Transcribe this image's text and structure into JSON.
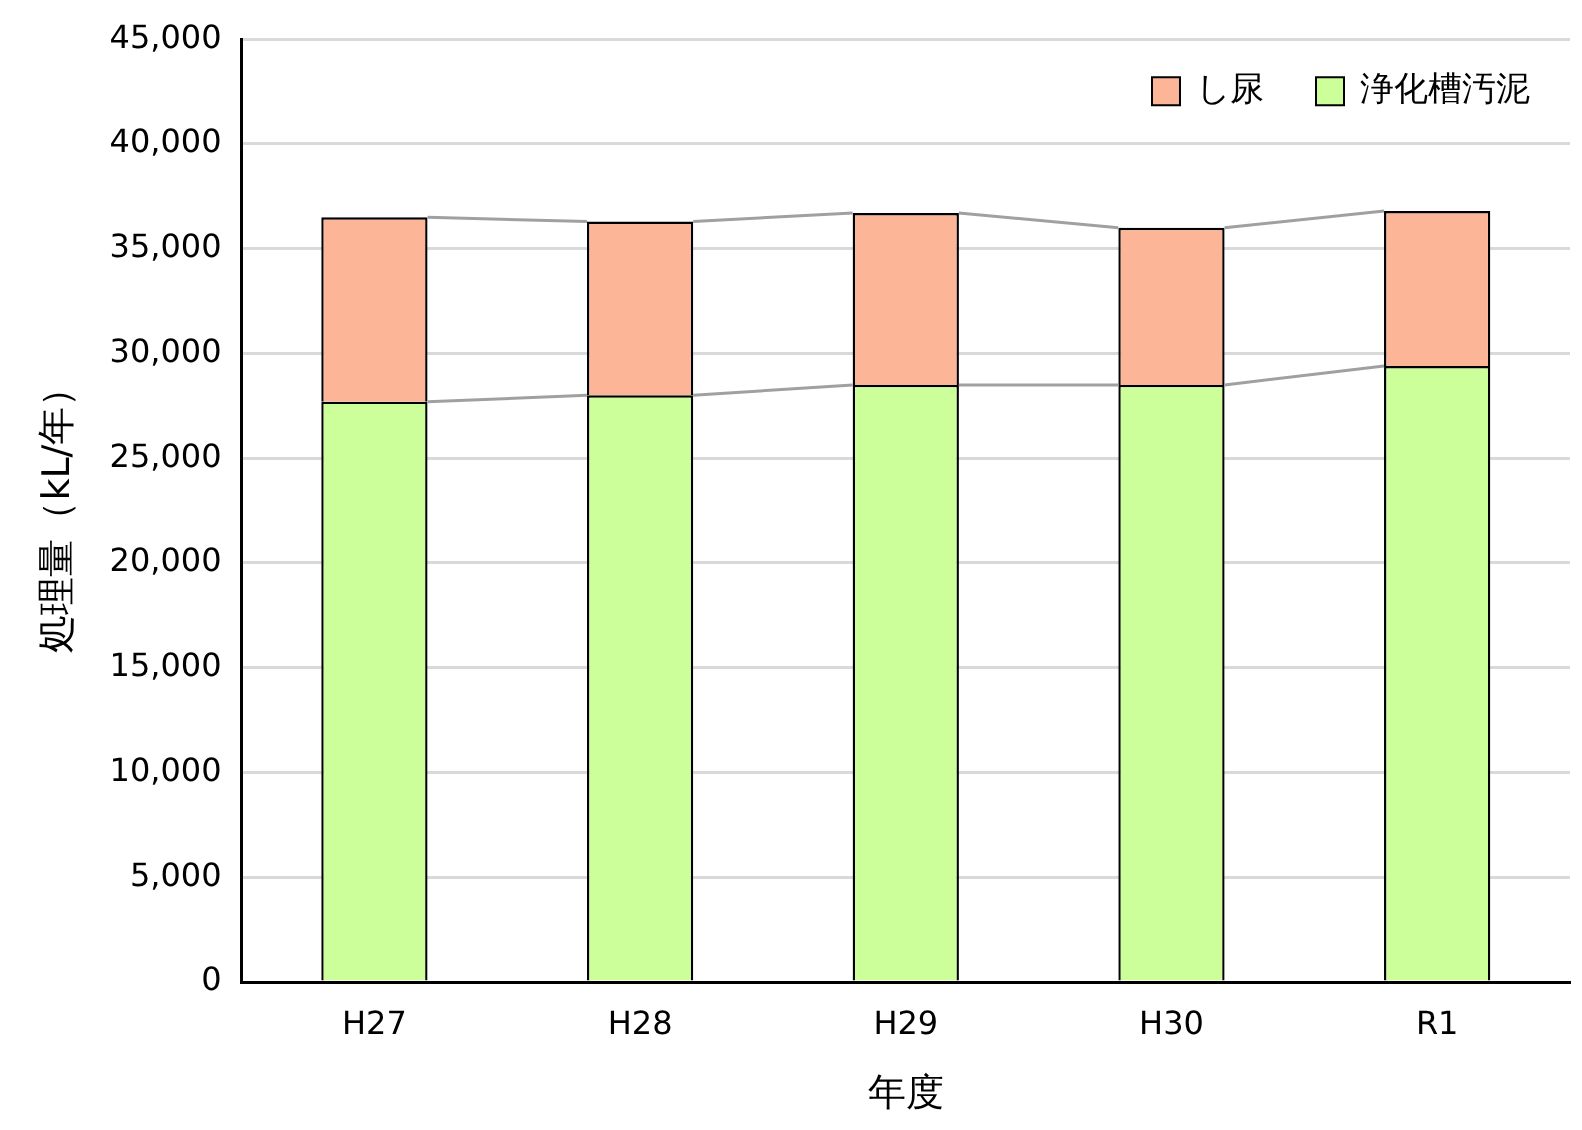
{
  "chart_data": {
    "type": "bar",
    "stacked": true,
    "xlabel": "年度",
    "ylabel": "処理量（kL/年）",
    "categories": [
      "H27",
      "H28",
      "H29",
      "H30",
      "R1"
    ],
    "series": [
      {
        "name": "浄化槽汚泥",
        "color": "#ccff99",
        "values": [
          27700,
          28000,
          28500,
          28500,
          29400
        ]
      },
      {
        "name": "し尿",
        "color": "#fdb597",
        "values": [
          8800,
          8300,
          8200,
          7500,
          7400
        ]
      }
    ],
    "ylim": [
      0,
      45000
    ],
    "yticks": [
      0,
      {
        "value": 5000,
        "label": "5,000"
      },
      {
        "value": 10000,
        "label": "10,000"
      },
      {
        "value": 15000,
        "label": "15,000"
      },
      {
        "value": 20000,
        "label": "20,000"
      },
      {
        "value": 25000,
        "label": "25,000"
      },
      {
        "value": 30000,
        "label": "30,000"
      },
      {
        "value": 35000,
        "label": "35,000"
      },
      {
        "value": 40000,
        "label": "40,000"
      },
      {
        "value": 45000,
        "label": "45,000"
      }
    ],
    "grid": "y",
    "legend": "top right"
  }
}
